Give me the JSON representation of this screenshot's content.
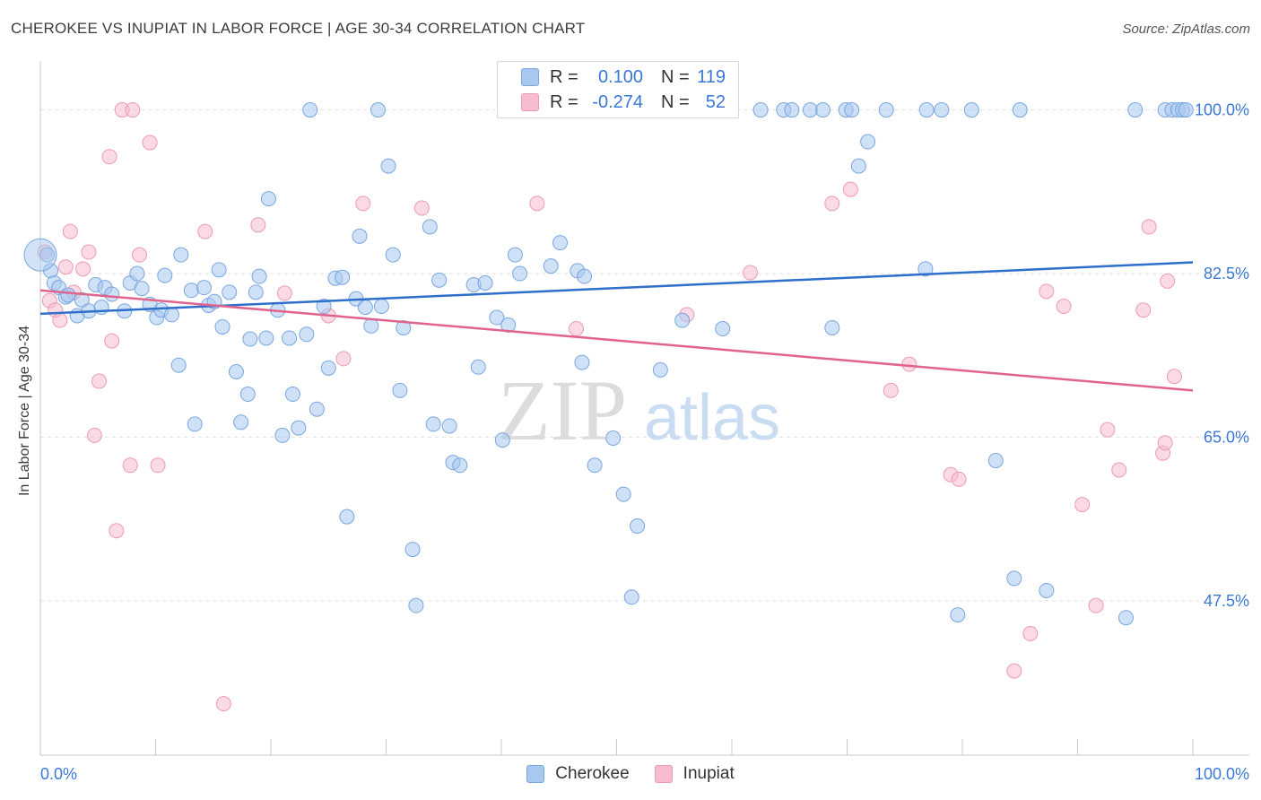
{
  "title": "CHEROKEE VS INUPIAT IN LABOR FORCE | AGE 30-34 CORRELATION CHART",
  "source": "Source: ZipAtlas.com",
  "watermark": {
    "zip": "ZIP",
    "atlas": "atlas"
  },
  "colors": {
    "cherokee_fill": "#a8c8f0",
    "cherokee_stroke": "#7aa6de",
    "cherokee_line": "#2f6fcc",
    "inupiat_fill": "#f7bcd0",
    "inupiat_stroke": "#eb9ab6",
    "inupiat_line": "#e0648e",
    "axis_text": "#3a78d4",
    "grid": "#e3e3e3"
  },
  "legend": {
    "rows": [
      {
        "r_label": "R =",
        "r_value": "0.100",
        "n_label": "N =",
        "n_value": "119"
      },
      {
        "r_label": "R =",
        "r_value": "-0.274",
        "n_label": "N =",
        "n_value": "52"
      }
    ]
  },
  "bottom_legend": {
    "series1": "Cherokee",
    "series2": "Inupiat"
  },
  "chart_data": {
    "type": "scatter",
    "xlabel": "",
    "ylabel": "In Labor Force | Age 30-34",
    "xlim": [
      0,
      100
    ],
    "ylim": [
      31,
      106
    ],
    "x_tick_labels": [
      "0.0%",
      "100.0%"
    ],
    "y_ticks": [
      47.5,
      65.0,
      82.5,
      100.0
    ],
    "y_tick_labels": [
      "47.5%",
      "65.0%",
      "82.5%",
      "100.0%"
    ],
    "grid": true,
    "series": [
      {
        "name": "Cherokee",
        "trend": {
          "x": [
            0,
            100
          ],
          "y": [
            78.2,
            83.7
          ]
        },
        "points": [
          [
            0.6,
            84.5
          ],
          [
            0.9,
            82.8
          ],
          [
            1.2,
            81.5
          ],
          [
            1.6,
            81.0
          ],
          [
            2.2,
            80.0
          ],
          [
            2.4,
            80.2
          ],
          [
            3.2,
            78.0
          ],
          [
            3.6,
            79.7
          ],
          [
            4.2,
            78.5
          ],
          [
            4.8,
            81.3
          ],
          [
            5.3,
            78.9
          ],
          [
            5.6,
            81.0
          ],
          [
            6.2,
            80.3
          ],
          [
            7.3,
            78.5
          ],
          [
            7.8,
            81.5
          ],
          [
            8.4,
            82.5
          ],
          [
            8.8,
            80.9
          ],
          [
            9.5,
            79.2
          ],
          [
            10.1,
            77.8
          ],
          [
            10.5,
            78.6
          ],
          [
            10.8,
            82.3
          ],
          [
            11.4,
            78.1
          ],
          [
            12.0,
            72.7
          ],
          [
            12.2,
            84.5
          ],
          [
            13.1,
            80.7
          ],
          [
            13.4,
            66.4
          ],
          [
            14.2,
            81.0
          ],
          [
            14.6,
            79.1
          ],
          [
            15.1,
            79.5
          ],
          [
            15.5,
            82.9
          ],
          [
            15.8,
            76.8
          ],
          [
            16.4,
            80.5
          ],
          [
            17.0,
            72.0
          ],
          [
            17.4,
            66.6
          ],
          [
            18.0,
            69.6
          ],
          [
            18.2,
            75.5
          ],
          [
            18.7,
            80.5
          ],
          [
            19.0,
            82.2
          ],
          [
            19.6,
            75.6
          ],
          [
            19.8,
            90.5
          ],
          [
            20.6,
            78.6
          ],
          [
            21.0,
            65.2
          ],
          [
            21.6,
            75.6
          ],
          [
            21.9,
            69.6
          ],
          [
            22.4,
            66.0
          ],
          [
            23.1,
            76.0
          ],
          [
            23.4,
            100.0
          ],
          [
            24.0,
            68.0
          ],
          [
            24.6,
            79.0
          ],
          [
            25.0,
            72.4
          ],
          [
            25.6,
            82.0
          ],
          [
            26.2,
            82.1
          ],
          [
            26.6,
            56.5
          ],
          [
            27.4,
            79.8
          ],
          [
            27.7,
            86.5
          ],
          [
            28.2,
            78.9
          ],
          [
            28.7,
            76.9
          ],
          [
            29.3,
            100.0
          ],
          [
            29.6,
            79.0
          ],
          [
            30.2,
            94.0
          ],
          [
            30.6,
            84.5
          ],
          [
            31.2,
            70.0
          ],
          [
            31.5,
            76.7
          ],
          [
            32.3,
            53.0
          ],
          [
            32.6,
            47.0
          ],
          [
            33.8,
            87.5
          ],
          [
            34.1,
            66.4
          ],
          [
            34.6,
            81.8
          ],
          [
            35.5,
            66.2
          ],
          [
            35.8,
            62.3
          ],
          [
            36.4,
            62.0
          ],
          [
            37.6,
            81.3
          ],
          [
            38.0,
            72.5
          ],
          [
            38.6,
            81.5
          ],
          [
            39.6,
            77.8
          ],
          [
            40.1,
            64.7
          ],
          [
            40.6,
            77.0
          ],
          [
            41.2,
            84.5
          ],
          [
            41.6,
            82.5
          ],
          [
            44.3,
            83.3
          ],
          [
            45.1,
            85.8
          ],
          [
            46.6,
            82.8
          ],
          [
            47.0,
            73.0
          ],
          [
            47.2,
            82.2
          ],
          [
            48.1,
            62.0
          ],
          [
            49.7,
            64.9
          ],
          [
            50.6,
            58.9
          ],
          [
            51.3,
            47.9
          ],
          [
            51.8,
            55.5
          ],
          [
            53.8,
            72.2
          ],
          [
            55.7,
            77.5
          ],
          [
            59.2,
            76.6
          ],
          [
            62.5,
            100.0
          ],
          [
            64.5,
            100.0
          ],
          [
            65.2,
            100.0
          ],
          [
            66.8,
            100.0
          ],
          [
            67.9,
            100.0
          ],
          [
            68.7,
            76.7
          ],
          [
            69.9,
            100.0
          ],
          [
            70.4,
            100.0
          ],
          [
            71.0,
            94.0
          ],
          [
            71.8,
            96.6
          ],
          [
            73.4,
            100.0
          ],
          [
            76.8,
            83.0
          ],
          [
            76.9,
            100.0
          ],
          [
            78.2,
            100.0
          ],
          [
            79.6,
            46.0
          ],
          [
            80.8,
            100.0
          ],
          [
            82.9,
            62.5
          ],
          [
            84.5,
            49.9
          ],
          [
            85.0,
            100.0
          ],
          [
            87.3,
            48.6
          ],
          [
            94.2,
            45.7
          ],
          [
            95.0,
            100.0
          ],
          [
            97.6,
            100.0
          ],
          [
            98.2,
            100.0
          ],
          [
            98.7,
            100.0
          ],
          [
            99.1,
            100.0
          ],
          [
            99.4,
            100.0
          ]
        ]
      },
      {
        "name": "Inupiat",
        "trend": {
          "x": [
            0,
            100
          ],
          "y": [
            80.7,
            70.0
          ]
        },
        "points": [
          [
            0.4,
            84.8
          ],
          [
            0.8,
            79.6
          ],
          [
            1.3,
            78.6
          ],
          [
            1.7,
            77.5
          ],
          [
            2.2,
            83.2
          ],
          [
            2.6,
            87.0
          ],
          [
            2.9,
            80.5
          ],
          [
            3.7,
            83.0
          ],
          [
            4.2,
            84.8
          ],
          [
            4.7,
            65.2
          ],
          [
            5.1,
            71.0
          ],
          [
            6.0,
            95.0
          ],
          [
            6.2,
            75.3
          ],
          [
            6.6,
            55.0
          ],
          [
            7.1,
            100.0
          ],
          [
            7.8,
            62.0
          ],
          [
            8.0,
            100.0
          ],
          [
            8.6,
            84.5
          ],
          [
            9.5,
            96.5
          ],
          [
            10.2,
            62.0
          ],
          [
            14.3,
            87.0
          ],
          [
            15.9,
            36.5
          ],
          [
            18.9,
            87.7
          ],
          [
            21.2,
            80.4
          ],
          [
            25.0,
            78.0
          ],
          [
            26.3,
            73.4
          ],
          [
            28.0,
            90.0
          ],
          [
            33.1,
            89.5
          ],
          [
            43.1,
            90.0
          ],
          [
            46.5,
            76.6
          ],
          [
            56.1,
            78.1
          ],
          [
            61.6,
            82.6
          ],
          [
            68.7,
            90.0
          ],
          [
            70.3,
            91.5
          ],
          [
            73.8,
            70.0
          ],
          [
            75.4,
            72.8
          ],
          [
            79.0,
            61.0
          ],
          [
            79.7,
            60.5
          ],
          [
            84.5,
            40.0
          ],
          [
            85.9,
            44.0
          ],
          [
            87.3,
            80.6
          ],
          [
            88.8,
            79.0
          ],
          [
            90.4,
            57.8
          ],
          [
            91.6,
            47.0
          ],
          [
            92.6,
            65.8
          ],
          [
            93.6,
            61.5
          ],
          [
            95.7,
            78.6
          ],
          [
            96.2,
            87.5
          ],
          [
            97.4,
            63.3
          ],
          [
            97.6,
            64.4
          ],
          [
            97.8,
            81.7
          ],
          [
            98.4,
            71.5
          ]
        ]
      }
    ]
  }
}
